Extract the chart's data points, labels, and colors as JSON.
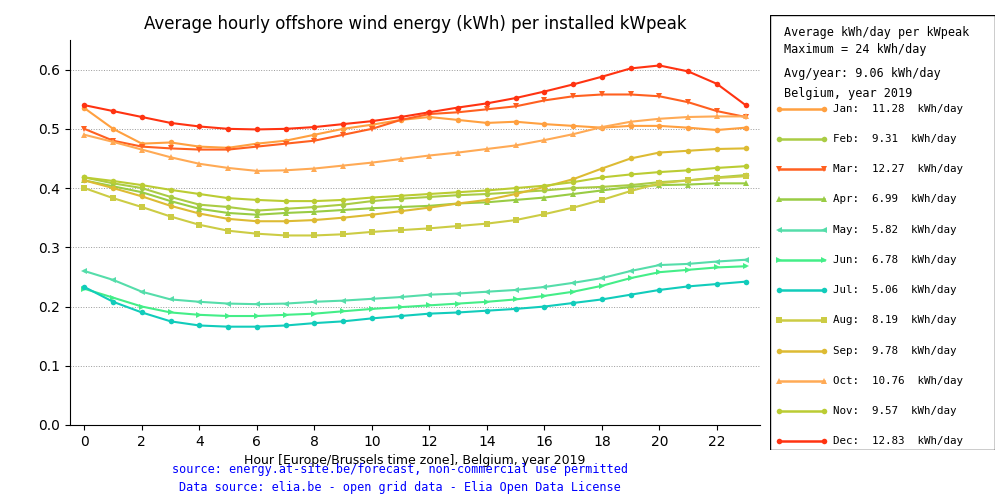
{
  "title": "Average hourly offshore wind energy (kWh) per installed kWpeak",
  "xlabel": "Hour [Europe/Brussels time zone], Belgium, year 2019",
  "xlim": [
    -0.5,
    23.5
  ],
  "ylim": [
    0.0,
    0.65
  ],
  "yticks": [
    0.0,
    0.1,
    0.2,
    0.3,
    0.4,
    0.5,
    0.6
  ],
  "xticks": [
    0,
    2,
    4,
    6,
    8,
    10,
    12,
    14,
    16,
    18,
    20,
    22
  ],
  "legend_title1": "Average kWh/day per kWpeak",
  "legend_title2": "Maximum = 24 kWh/day",
  "legend_subtitle1": "Avg/year: 9.06 kWh/day",
  "legend_subtitle2": "Belgium, year 2019",
  "source_text1": "source: energy.at-site.be/forecast, non-commercial use permitted",
  "source_text2": "Data source: elia.be - open grid data - Elia Open Data License",
  "months": [
    "Jan",
    "Feb",
    "Mar",
    "Apr",
    "May",
    "Jun",
    "Jul",
    "Aug",
    "Sep",
    "Oct",
    "Nov",
    "Dec"
  ],
  "kwh_per_day": [
    11.28,
    9.31,
    12.27,
    6.99,
    5.82,
    6.78,
    5.06,
    8.19,
    9.78,
    10.76,
    9.57,
    12.83
  ],
  "colors": [
    "#FFA040",
    "#AACC44",
    "#FF6020",
    "#99CC44",
    "#55DDAA",
    "#44EE88",
    "#11CCBB",
    "#CCCC44",
    "#DDBB33",
    "#FFAA55",
    "#BBCC33",
    "#FF3311"
  ],
  "markers": [
    "o",
    "o",
    "v",
    "^",
    "<",
    ">",
    "o",
    "s",
    "o",
    "^",
    "o",
    "o"
  ],
  "data": {
    "Jan": [
      0.535,
      0.5,
      0.475,
      0.477,
      0.47,
      0.468,
      0.475,
      0.48,
      0.49,
      0.5,
      0.507,
      0.515,
      0.52,
      0.515,
      0.51,
      0.512,
      0.508,
      0.505,
      0.502,
      0.505,
      0.505,
      0.502,
      0.498,
      0.502
    ],
    "Feb": [
      0.418,
      0.408,
      0.4,
      0.385,
      0.372,
      0.368,
      0.362,
      0.365,
      0.368,
      0.372,
      0.378,
      0.382,
      0.385,
      0.388,
      0.39,
      0.393,
      0.396,
      0.4,
      0.402,
      0.405,
      0.41,
      0.413,
      0.418,
      0.422
    ],
    "Mar": [
      0.5,
      0.48,
      0.47,
      0.467,
      0.465,
      0.465,
      0.47,
      0.475,
      0.48,
      0.49,
      0.5,
      0.515,
      0.525,
      0.528,
      0.533,
      0.538,
      0.548,
      0.555,
      0.558,
      0.558,
      0.555,
      0.545,
      0.53,
      0.52
    ],
    "Apr": [
      0.413,
      0.403,
      0.393,
      0.378,
      0.365,
      0.358,
      0.355,
      0.358,
      0.36,
      0.363,
      0.366,
      0.368,
      0.37,
      0.374,
      0.376,
      0.38,
      0.384,
      0.39,
      0.396,
      0.402,
      0.405,
      0.406,
      0.408,
      0.408
    ],
    "May": [
      0.26,
      0.245,
      0.225,
      0.212,
      0.208,
      0.205,
      0.204,
      0.205,
      0.208,
      0.21,
      0.213,
      0.216,
      0.22,
      0.222,
      0.225,
      0.228,
      0.233,
      0.24,
      0.248,
      0.26,
      0.27,
      0.272,
      0.276,
      0.279
    ],
    "Jun": [
      0.23,
      0.215,
      0.2,
      0.19,
      0.186,
      0.184,
      0.184,
      0.186,
      0.188,
      0.192,
      0.196,
      0.199,
      0.202,
      0.205,
      0.208,
      0.212,
      0.218,
      0.225,
      0.235,
      0.248,
      0.258,
      0.262,
      0.266,
      0.268
    ],
    "Jul": [
      0.233,
      0.208,
      0.19,
      0.175,
      0.168,
      0.166,
      0.166,
      0.168,
      0.172,
      0.175,
      0.18,
      0.184,
      0.188,
      0.19,
      0.193,
      0.196,
      0.2,
      0.206,
      0.212,
      0.22,
      0.228,
      0.234,
      0.238,
      0.242
    ],
    "Aug": [
      0.4,
      0.383,
      0.368,
      0.352,
      0.338,
      0.328,
      0.323,
      0.32,
      0.32,
      0.322,
      0.326,
      0.329,
      0.332,
      0.336,
      0.34,
      0.346,
      0.356,
      0.367,
      0.38,
      0.395,
      0.408,
      0.413,
      0.417,
      0.42
    ],
    "Sep": [
      0.413,
      0.4,
      0.386,
      0.37,
      0.357,
      0.348,
      0.344,
      0.344,
      0.346,
      0.35,
      0.355,
      0.361,
      0.367,
      0.374,
      0.38,
      0.39,
      0.402,
      0.415,
      0.433,
      0.45,
      0.46,
      0.463,
      0.466,
      0.467
    ],
    "Oct": [
      0.49,
      0.478,
      0.465,
      0.452,
      0.441,
      0.434,
      0.429,
      0.43,
      0.433,
      0.438,
      0.443,
      0.449,
      0.455,
      0.46,
      0.466,
      0.472,
      0.481,
      0.491,
      0.503,
      0.512,
      0.517,
      0.52,
      0.521,
      0.521
    ],
    "Nov": [
      0.418,
      0.412,
      0.405,
      0.397,
      0.39,
      0.383,
      0.38,
      0.378,
      0.378,
      0.38,
      0.384,
      0.387,
      0.39,
      0.393,
      0.396,
      0.4,
      0.404,
      0.41,
      0.418,
      0.423,
      0.427,
      0.43,
      0.434,
      0.437
    ],
    "Dec": [
      0.54,
      0.53,
      0.52,
      0.51,
      0.504,
      0.5,
      0.499,
      0.5,
      0.503,
      0.508,
      0.513,
      0.52,
      0.528,
      0.536,
      0.543,
      0.552,
      0.563,
      0.575,
      0.588,
      0.602,
      0.607,
      0.597,
      0.576,
      0.54
    ]
  }
}
